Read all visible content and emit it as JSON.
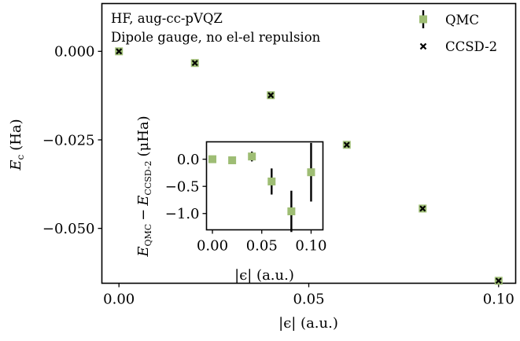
{
  "chart_data": [
    {
      "type": "scatter",
      "id": "main",
      "annotations": [
        "HF, aug-cc-pVQZ",
        "Dipole gauge, no el-el repulsion"
      ],
      "xlabel": "|ϵ| (a.u.)",
      "ylabel": "E_c (Ha)",
      "ylabel_main": "E",
      "ylabel_sub": "c",
      "ylabel_unit": "(Ha)",
      "xlim": [
        -0.0045,
        0.1045
      ],
      "ylim": [
        -0.0655,
        0.0135
      ],
      "xticks": [
        {
          "value": 0.0,
          "label": "0.00"
        },
        {
          "value": 0.05,
          "label": "0.05"
        },
        {
          "value": 0.1,
          "label": "0.10"
        }
      ],
      "yticks": [
        {
          "value": 0.0,
          "label": "0.000"
        },
        {
          "value": -0.025,
          "label": "−0.025"
        },
        {
          "value": -0.05,
          "label": "−0.050"
        }
      ],
      "legend": {
        "placement": "top-right",
        "entries": [
          "QMC",
          "CCSD-2"
        ]
      },
      "series": [
        {
          "name": "QMC",
          "marker": "square",
          "color": "#9ebd74",
          "x": [
            0.0,
            0.02,
            0.04,
            0.06,
            0.08,
            0.1
          ],
          "y": [
            0.0,
            -0.0033,
            -0.0124,
            -0.0264,
            -0.0444,
            -0.0648
          ]
        },
        {
          "name": "CCSD-2",
          "marker": "x",
          "color": "#000000",
          "x": [
            0.0,
            0.02,
            0.04,
            0.06,
            0.08,
            0.1
          ],
          "y": [
            0.0,
            -0.0033,
            -0.0124,
            -0.0264,
            -0.0444,
            -0.0648
          ]
        }
      ]
    },
    {
      "type": "scatter",
      "id": "inset",
      "xlabel": "|ϵ| (a.u.)",
      "ylabel": "E_QMC − E_CCSD-2 (μHa)",
      "ylabel_parts": {
        "e1": "E",
        "s1": "QMC",
        "minus": "−",
        "e2": "E",
        "s2": "CCSD-2",
        "unit": "(μHa)"
      },
      "xlim": [
        -0.006,
        0.112
      ],
      "ylim": [
        -1.3,
        0.32
      ],
      "xticks": [
        {
          "value": 0.0,
          "label": "0.00"
        },
        {
          "value": 0.05,
          "label": "0.05"
        },
        {
          "value": 0.1,
          "label": "0.10"
        }
      ],
      "yticks": [
        {
          "value": 0.0,
          "label": "0.0"
        },
        {
          "value": -0.5,
          "label": "−0.5"
        },
        {
          "value": -1.0,
          "label": "−1.0"
        }
      ],
      "series": [
        {
          "name": "QMC − CCSD-2",
          "marker": "square",
          "color": "#9ebd74",
          "x": [
            0.0,
            0.02,
            0.04,
            0.06,
            0.08,
            0.1
          ],
          "y": [
            0.0,
            -0.02,
            0.05,
            -0.41,
            -0.96,
            -0.24
          ],
          "err": [
            0.0,
            0.0,
            0.09,
            0.24,
            0.38,
            0.54
          ]
        }
      ]
    }
  ]
}
